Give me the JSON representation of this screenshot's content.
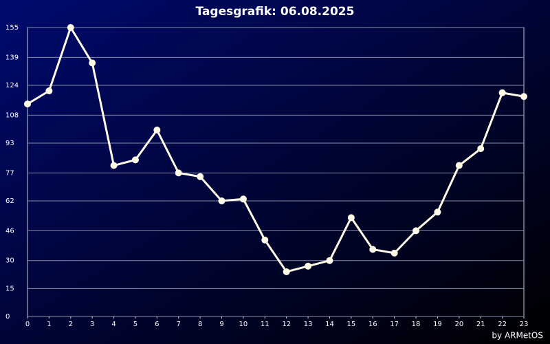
{
  "chart_data": {
    "type": "line",
    "title": "Tagesgrafik: 06.08.2025",
    "credit": "by ARMetOS",
    "x": [
      0,
      1,
      2,
      3,
      4,
      5,
      6,
      7,
      8,
      9,
      10,
      11,
      12,
      13,
      14,
      15,
      16,
      17,
      18,
      19,
      20,
      21,
      22,
      23
    ],
    "series": [
      {
        "name": null,
        "color": "#fffbe8",
        "values": [
          114,
          121,
          155,
          136,
          81,
          84,
          100,
          77,
          75,
          62,
          63,
          41,
          24,
          27,
          30,
          53,
          36,
          34,
          46,
          56,
          81,
          90,
          120,
          118
        ]
      }
    ],
    "xlim": [
      0,
      23
    ],
    "xticks": [
      0,
      1,
      2,
      3,
      4,
      5,
      6,
      7,
      8,
      9,
      10,
      11,
      12,
      13,
      14,
      15,
      16,
      17,
      18,
      19,
      20,
      21,
      22,
      23
    ],
    "ylim": [
      0,
      155
    ],
    "yticks": [
      0,
      15,
      30,
      46,
      62,
      77,
      93,
      108,
      124,
      139,
      155
    ],
    "grid": true
  }
}
